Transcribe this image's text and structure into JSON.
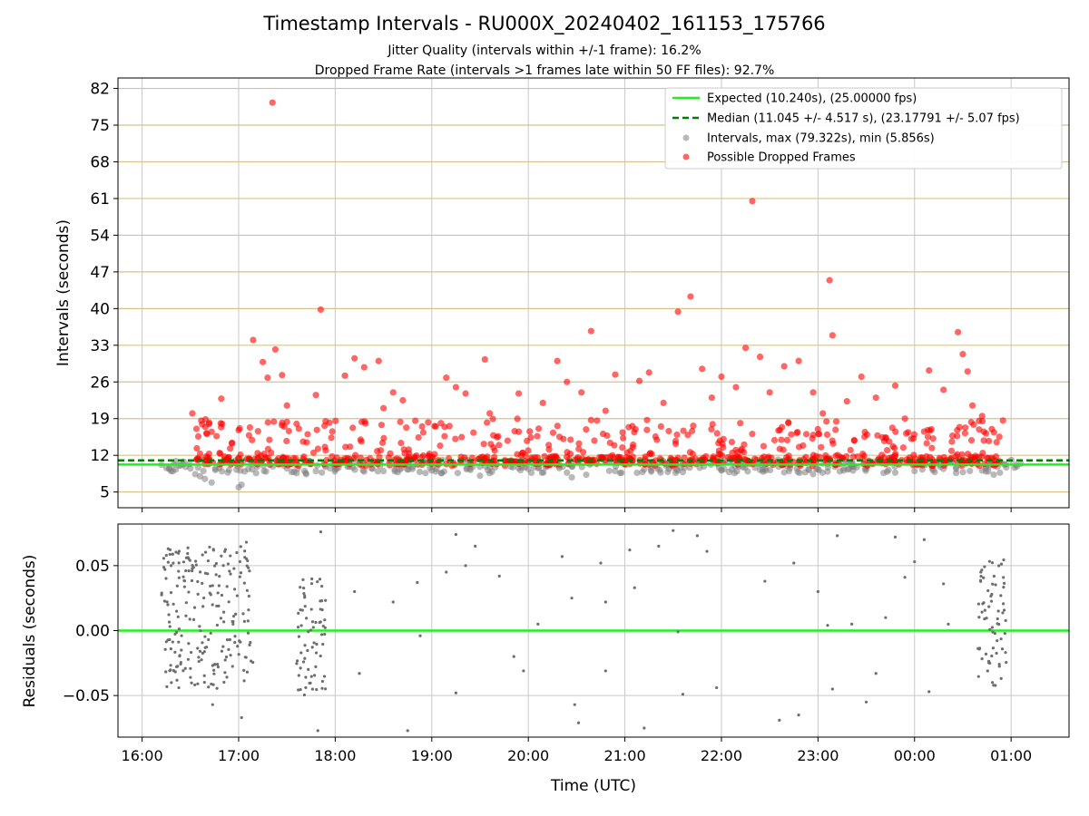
{
  "chart_data": [
    {
      "type": "scatter",
      "title": "Timestamp Intervals - RU000X_20240402_161153_175766",
      "subtitle_1": "Jitter Quality (intervals within +/-1 frame): 16.2%",
      "subtitle_2": "Dropped Frame Rate (intervals >1 frames late within 50 FF files): 92.7%",
      "ylabel": "Intervals (seconds)",
      "x_range_hours": [
        15.75,
        25.6
      ],
      "ylim": [
        2,
        84
      ],
      "y_ticks": [
        5,
        12,
        19,
        26,
        33,
        40,
        47,
        54,
        61,
        68,
        75,
        82
      ],
      "y_tick_labels": [
        "5",
        "12",
        "19",
        "26",
        "33",
        "40",
        "47",
        "54",
        "61",
        "68",
        "75",
        "82"
      ],
      "grid": "horizontal tan lines at y ticks, vertical gray lines at hour ticks",
      "legend": {
        "placement": "top-right",
        "entries": [
          "Expected (10.240s), (25.00000 fps)",
          "Median (11.045 +/- 4.517 s), (23.17791 +/- 5.07 fps)",
          "Intervals, max (79.322s), min (5.856s)",
          "Possible Dropped Frames"
        ]
      },
      "reference_lines": {
        "expected": 10.24,
        "median": 11.045
      },
      "colors": {
        "expected": "#22ee22",
        "median": "#008000",
        "intervals": "#808080",
        "dropped": "#ff0000",
        "hgrid": "#d8c38a",
        "vgrid": "#c8c8c8"
      },
      "intervals_gray": [
        [
          16.2,
          10.2
        ],
        [
          16.3,
          9.0
        ],
        [
          16.35,
          10.9
        ],
        [
          16.4,
          10.1
        ],
        [
          16.45,
          9.8
        ],
        [
          16.5,
          9.5
        ],
        [
          16.55,
          8.4
        ],
        [
          16.6,
          8.0
        ],
        [
          16.65,
          7.5
        ],
        [
          16.72,
          6.8
        ],
        [
          16.8,
          9.6
        ],
        [
          16.9,
          9.2
        ],
        [
          17.0,
          5.9
        ],
        [
          17.03,
          6.4
        ],
        [
          17.1,
          9.4
        ],
        [
          17.18,
          8.6
        ],
        [
          17.5,
          9.5
        ],
        [
          17.6,
          8.6
        ],
        [
          17.7,
          8.4
        ],
        [
          17.8,
          9.0
        ],
        [
          17.9,
          9.8
        ],
        [
          18.0,
          9.3
        ],
        [
          18.3,
          8.9
        ],
        [
          18.5,
          9.0
        ],
        [
          18.8,
          9.4
        ],
        [
          19.0,
          9.1
        ],
        [
          19.1,
          8.6
        ],
        [
          19.4,
          9.2
        ],
        [
          19.5,
          8.1
        ],
        [
          19.6,
          8.6
        ],
        [
          20.0,
          9.4
        ],
        [
          20.4,
          8.7
        ],
        [
          20.45,
          7.8
        ],
        [
          20.6,
          8.3
        ],
        [
          20.9,
          9.0
        ],
        [
          21.2,
          9.3
        ],
        [
          21.6,
          8.8
        ],
        [
          22.0,
          9.1
        ],
        [
          22.4,
          9.2
        ],
        [
          22.7,
          9.0
        ],
        [
          22.95,
          8.4
        ],
        [
          23.1,
          8.9
        ],
        [
          23.5,
          9.5
        ],
        [
          23.8,
          8.7
        ],
        [
          24.0,
          9.0
        ],
        [
          24.5,
          8.8
        ],
        [
          24.7,
          9.1
        ],
        [
          24.82,
          8.3
        ],
        [
          24.95,
          9.7
        ],
        [
          25.05,
          10.2
        ],
        [
          25.1,
          10.4
        ]
      ],
      "possible_dropped_frames": [
        [
          16.52,
          20.0
        ],
        [
          16.6,
          12.3
        ],
        [
          16.72,
          16.5
        ],
        [
          16.82,
          22.8
        ],
        [
          17.0,
          16.8
        ],
        [
          17.15,
          34.0
        ],
        [
          17.25,
          29.8
        ],
        [
          17.3,
          26.8
        ],
        [
          17.35,
          79.3
        ],
        [
          17.38,
          32.2
        ],
        [
          17.45,
          27.3
        ],
        [
          17.5,
          21.5
        ],
        [
          17.6,
          18.0
        ],
        [
          17.8,
          23.5
        ],
        [
          17.85,
          39.8
        ],
        [
          17.9,
          18.5
        ],
        [
          18.1,
          27.2
        ],
        [
          18.2,
          30.5
        ],
        [
          18.3,
          28.8
        ],
        [
          18.45,
          30.0
        ],
        [
          18.5,
          21.0
        ],
        [
          18.6,
          24.0
        ],
        [
          18.7,
          22.5
        ],
        [
          18.9,
          17.5
        ],
        [
          19.15,
          26.8
        ],
        [
          19.25,
          25.0
        ],
        [
          19.35,
          23.8
        ],
        [
          19.55,
          30.3
        ],
        [
          19.6,
          20.0
        ],
        [
          19.9,
          23.8
        ],
        [
          20.15,
          22.0
        ],
        [
          20.3,
          30.0
        ],
        [
          20.4,
          26.0
        ],
        [
          20.55,
          24.0
        ],
        [
          20.65,
          35.7
        ],
        [
          20.8,
          20.5
        ],
        [
          20.9,
          27.4
        ],
        [
          21.15,
          26.2
        ],
        [
          21.25,
          27.8
        ],
        [
          21.4,
          22.0
        ],
        [
          21.55,
          39.4
        ],
        [
          21.68,
          42.3
        ],
        [
          21.8,
          28.5
        ],
        [
          21.9,
          23.0
        ],
        [
          22.0,
          27.0
        ],
        [
          22.15,
          25.0
        ],
        [
          22.25,
          32.5
        ],
        [
          22.32,
          60.5
        ],
        [
          22.4,
          30.8
        ],
        [
          22.5,
          24.0
        ],
        [
          22.65,
          29.0
        ],
        [
          22.8,
          30.0
        ],
        [
          22.95,
          24.0
        ],
        [
          23.05,
          20.0
        ],
        [
          23.12,
          45.4
        ],
        [
          23.15,
          34.9
        ],
        [
          23.3,
          22.3
        ],
        [
          23.45,
          27.0
        ],
        [
          23.6,
          23.0
        ],
        [
          23.8,
          25.3
        ],
        [
          23.9,
          19.0
        ],
        [
          24.15,
          28.2
        ],
        [
          24.3,
          24.5
        ],
        [
          24.45,
          35.5
        ],
        [
          24.5,
          31.3
        ],
        [
          24.55,
          28.0
        ],
        [
          24.6,
          21.5
        ],
        [
          24.7,
          19.5
        ],
        [
          24.8,
          17.0
        ],
        [
          24.85,
          14.5
        ]
      ],
      "dropped_band": {
        "x_range": [
          16.55,
          24.95
        ],
        "y_range": [
          10.0,
          19.0
        ],
        "dense": true
      }
    },
    {
      "type": "scatter",
      "ylabel": "Residuals (seconds)",
      "xlabel": "Time (UTC)",
      "ylim": [
        -0.082,
        0.082
      ],
      "y_ticks": [
        -0.05,
        0.0,
        0.05
      ],
      "y_tick_labels": [
        "−0.05",
        "0.00",
        "0.05"
      ],
      "x_ticks": [
        16,
        17,
        18,
        19,
        20,
        21,
        22,
        23,
        24,
        25
      ],
      "x_tick_labels": [
        "16:00",
        "17:00",
        "18:00",
        "19:00",
        "20:00",
        "21:00",
        "22:00",
        "23:00",
        "00:00",
        "01:00"
      ],
      "reference_line": 0.0,
      "clusters": [
        {
          "x_range": [
            16.2,
            17.15
          ],
          "y_range": [
            -0.045,
            0.065
          ]
        },
        {
          "x_range": [
            17.6,
            17.9
          ],
          "y_range": [
            -0.05,
            0.04
          ]
        },
        {
          "x_range": [
            24.65,
            24.95
          ],
          "y_range": [
            -0.045,
            0.055
          ]
        }
      ],
      "residual_points": [
        [
          16.27,
          0.063
        ],
        [
          16.3,
          0.05
        ],
        [
          16.38,
          -0.044
        ],
        [
          16.73,
          -0.057
        ],
        [
          16.98,
          0.06
        ],
        [
          17.08,
          0.068
        ],
        [
          17.03,
          -0.067
        ],
        [
          17.85,
          0.076
        ],
        [
          17.82,
          -0.077
        ],
        [
          18.2,
          0.03
        ],
        [
          18.25,
          -0.033
        ],
        [
          18.6,
          0.022
        ],
        [
          18.75,
          -0.077
        ],
        [
          18.85,
          0.037
        ],
        [
          18.88,
          -0.004
        ],
        [
          19.15,
          0.045
        ],
        [
          19.25,
          0.074
        ],
        [
          19.25,
          -0.048
        ],
        [
          19.35,
          0.05
        ],
        [
          19.45,
          0.065
        ],
        [
          19.7,
          0.042
        ],
        [
          19.85,
          -0.02
        ],
        [
          19.95,
          -0.031
        ],
        [
          20.1,
          0.005
        ],
        [
          20.35,
          0.057
        ],
        [
          20.45,
          0.025
        ],
        [
          20.48,
          -0.057
        ],
        [
          20.52,
          -0.071
        ],
        [
          20.75,
          0.052
        ],
        [
          20.8,
          -0.031
        ],
        [
          20.8,
          0.022
        ],
        [
          21.05,
          0.062
        ],
        [
          21.1,
          0.033
        ],
        [
          21.2,
          -0.075
        ],
        [
          21.35,
          0.065
        ],
        [
          21.5,
          0.077
        ],
        [
          21.55,
          -0.001
        ],
        [
          21.6,
          -0.049
        ],
        [
          21.75,
          0.073
        ],
        [
          21.85,
          0.061
        ],
        [
          21.95,
          -0.044
        ],
        [
          22.45,
          0.038
        ],
        [
          22.6,
          -0.069
        ],
        [
          22.75,
          0.052
        ],
        [
          22.8,
          -0.065
        ],
        [
          23.0,
          0.03
        ],
        [
          23.1,
          0.004
        ],
        [
          23.15,
          -0.045
        ],
        [
          23.2,
          0.073
        ],
        [
          23.35,
          0.005
        ],
        [
          23.5,
          -0.055
        ],
        [
          23.6,
          -0.033
        ],
        [
          23.7,
          0.01
        ],
        [
          23.8,
          0.072
        ],
        [
          23.9,
          0.041
        ],
        [
          24.0,
          0.053
        ],
        [
          24.1,
          0.07
        ],
        [
          24.15,
          -0.047
        ],
        [
          24.3,
          0.036
        ],
        [
          24.35,
          0.005
        ]
      ]
    }
  ]
}
